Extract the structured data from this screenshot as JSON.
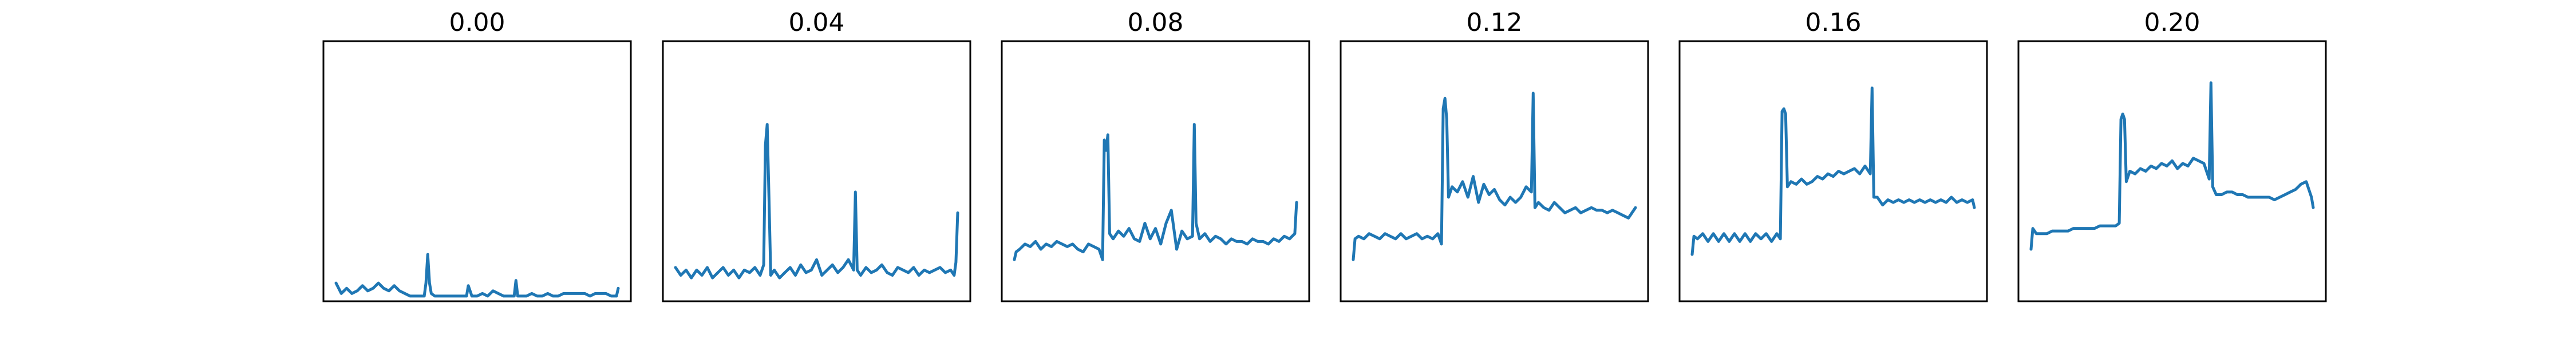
{
  "figure": {
    "background": "#ffffff",
    "line_color": "#1f77b4"
  },
  "chart_data": [
    {
      "type": "line",
      "title": "0.00",
      "ylim": [
        0,
        1
      ],
      "grid": false,
      "x": [
        0,
        3,
        6,
        9,
        12,
        15,
        18,
        21,
        24,
        27,
        30,
        33,
        36,
        39,
        42,
        45,
        48,
        50,
        51,
        52,
        53,
        54,
        56,
        59,
        62,
        65,
        68,
        71,
        74,
        75,
        77,
        80,
        83,
        86,
        89,
        92,
        95,
        98,
        101,
        102,
        103,
        105,
        108,
        111,
        114,
        117,
        120,
        123,
        126,
        129,
        132,
        135,
        138,
        141,
        144,
        147,
        150,
        153,
        156,
        159,
        160
      ],
      "series": [
        {
          "values": [
            0.07,
            0.03,
            0.05,
            0.03,
            0.04,
            0.06,
            0.04,
            0.05,
            0.07,
            0.05,
            0.04,
            0.06,
            0.04,
            0.03,
            0.02,
            0.02,
            0.02,
            0.02,
            0.07,
            0.18,
            0.07,
            0.03,
            0.02,
            0.02,
            0.02,
            0.02,
            0.02,
            0.02,
            0.02,
            0.06,
            0.02,
            0.02,
            0.03,
            0.02,
            0.04,
            0.03,
            0.02,
            0.02,
            0.02,
            0.08,
            0.02,
            0.02,
            0.02,
            0.03,
            0.02,
            0.02,
            0.03,
            0.02,
            0.02,
            0.03,
            0.03,
            0.03,
            0.03,
            0.03,
            0.02,
            0.03,
            0.03,
            0.03,
            0.02,
            0.02,
            0.05
          ]
        }
      ]
    },
    {
      "type": "line",
      "title": "0.04",
      "ylim": [
        0,
        1
      ],
      "grid": false,
      "x": [
        0,
        3,
        6,
        9,
        12,
        15,
        18,
        21,
        24,
        27,
        30,
        33,
        36,
        39,
        42,
        45,
        48,
        50,
        51,
        52,
        53,
        54,
        56,
        59,
        62,
        65,
        68,
        71,
        74,
        77,
        80,
        83,
        86,
        89,
        92,
        95,
        98,
        101,
        102,
        103,
        105,
        108,
        111,
        114,
        117,
        120,
        123,
        126,
        129,
        132,
        135,
        138,
        141,
        144,
        147,
        150,
        153,
        156,
        158,
        159,
        160
      ],
      "series": [
        {
          "values": [
            0.13,
            0.1,
            0.12,
            0.09,
            0.12,
            0.1,
            0.13,
            0.09,
            0.11,
            0.13,
            0.1,
            0.12,
            0.09,
            0.12,
            0.11,
            0.13,
            0.1,
            0.14,
            0.6,
            0.68,
            0.4,
            0.1,
            0.12,
            0.09,
            0.11,
            0.13,
            0.1,
            0.14,
            0.11,
            0.12,
            0.16,
            0.1,
            0.12,
            0.14,
            0.11,
            0.13,
            0.16,
            0.12,
            0.42,
            0.12,
            0.1,
            0.13,
            0.11,
            0.12,
            0.14,
            0.11,
            0.1,
            0.13,
            0.12,
            0.11,
            0.13,
            0.1,
            0.12,
            0.11,
            0.12,
            0.13,
            0.11,
            0.12,
            0.1,
            0.15,
            0.34
          ]
        }
      ]
    },
    {
      "type": "line",
      "title": "0.08",
      "ylim": [
        0,
        1
      ],
      "grid": false,
      "x": [
        0,
        1,
        3,
        6,
        9,
        12,
        15,
        18,
        21,
        24,
        27,
        30,
        33,
        36,
        39,
        42,
        45,
        48,
        50,
        51,
        52,
        53,
        54,
        56,
        59,
        62,
        65,
        68,
        71,
        74,
        77,
        80,
        83,
        86,
        89,
        92,
        95,
        98,
        101,
        102,
        103,
        105,
        108,
        111,
        114,
        117,
        120,
        123,
        126,
        129,
        132,
        135,
        138,
        141,
        144,
        147,
        150,
        153,
        156,
        159,
        160
      ],
      "series": [
        {
          "values": [
            0.16,
            0.19,
            0.2,
            0.22,
            0.21,
            0.23,
            0.2,
            0.22,
            0.21,
            0.23,
            0.22,
            0.21,
            0.22,
            0.2,
            0.19,
            0.22,
            0.21,
            0.2,
            0.16,
            0.62,
            0.58,
            0.64,
            0.26,
            0.24,
            0.27,
            0.25,
            0.28,
            0.24,
            0.23,
            0.3,
            0.24,
            0.28,
            0.22,
            0.3,
            0.35,
            0.2,
            0.27,
            0.24,
            0.25,
            0.68,
            0.3,
            0.24,
            0.26,
            0.23,
            0.25,
            0.24,
            0.22,
            0.24,
            0.23,
            0.23,
            0.22,
            0.24,
            0.23,
            0.23,
            0.22,
            0.24,
            0.23,
            0.25,
            0.24,
            0.26,
            0.38
          ]
        }
      ]
    },
    {
      "type": "line",
      "title": "0.12",
      "ylim": [
        0,
        1
      ],
      "grid": false,
      "x": [
        0,
        1,
        3,
        6,
        9,
        12,
        15,
        18,
        21,
        24,
        27,
        30,
        33,
        36,
        39,
        42,
        45,
        48,
        50,
        51,
        52,
        53,
        54,
        56,
        59,
        62,
        65,
        68,
        71,
        74,
        77,
        80,
        83,
        86,
        89,
        92,
        95,
        98,
        101,
        102,
        103,
        105,
        108,
        111,
        114,
        117,
        120,
        123,
        126,
        129,
        132,
        135,
        138,
        141,
        144,
        147,
        150,
        153,
        156,
        159,
        160
      ],
      "series": [
        {
          "values": [
            0.16,
            0.24,
            0.25,
            0.24,
            0.26,
            0.25,
            0.24,
            0.26,
            0.25,
            0.24,
            0.26,
            0.24,
            0.25,
            0.26,
            0.24,
            0.25,
            0.24,
            0.26,
            0.22,
            0.74,
            0.78,
            0.7,
            0.4,
            0.44,
            0.42,
            0.46,
            0.4,
            0.48,
            0.38,
            0.45,
            0.41,
            0.43,
            0.39,
            0.37,
            0.4,
            0.38,
            0.4,
            0.44,
            0.42,
            0.8,
            0.36,
            0.38,
            0.36,
            0.35,
            0.38,
            0.36,
            0.34,
            0.35,
            0.36,
            0.34,
            0.35,
            0.36,
            0.35,
            0.35,
            0.34,
            0.35,
            0.34,
            0.33,
            0.32,
            0.35,
            0.36
          ]
        }
      ]
    },
    {
      "type": "line",
      "title": "0.16",
      "ylim": [
        0,
        1
      ],
      "grid": false,
      "x": [
        0,
        1,
        3,
        6,
        9,
        12,
        15,
        18,
        21,
        24,
        27,
        30,
        33,
        36,
        39,
        42,
        45,
        48,
        50,
        51,
        52,
        53,
        54,
        56,
        59,
        62,
        65,
        68,
        71,
        74,
        77,
        80,
        83,
        86,
        89,
        92,
        95,
        98,
        101,
        102,
        103,
        105,
        108,
        111,
        114,
        117,
        120,
        123,
        126,
        129,
        132,
        135,
        138,
        141,
        144,
        147,
        150,
        153,
        156,
        159,
        160
      ],
      "series": [
        {
          "values": [
            0.18,
            0.25,
            0.24,
            0.26,
            0.23,
            0.26,
            0.23,
            0.26,
            0.23,
            0.26,
            0.23,
            0.26,
            0.23,
            0.26,
            0.24,
            0.26,
            0.23,
            0.26,
            0.24,
            0.73,
            0.74,
            0.72,
            0.44,
            0.46,
            0.45,
            0.47,
            0.45,
            0.46,
            0.48,
            0.47,
            0.49,
            0.48,
            0.5,
            0.49,
            0.5,
            0.51,
            0.49,
            0.52,
            0.49,
            0.82,
            0.4,
            0.4,
            0.37,
            0.39,
            0.38,
            0.39,
            0.38,
            0.39,
            0.38,
            0.39,
            0.38,
            0.39,
            0.38,
            0.39,
            0.38,
            0.4,
            0.38,
            0.39,
            0.38,
            0.39,
            0.36
          ]
        }
      ]
    },
    {
      "type": "line",
      "title": "0.20",
      "ylim": [
        0,
        1
      ],
      "grid": false,
      "x": [
        0,
        1,
        3,
        6,
        9,
        12,
        15,
        18,
        21,
        24,
        27,
        30,
        33,
        36,
        39,
        42,
        45,
        48,
        50,
        51,
        52,
        53,
        54,
        56,
        59,
        62,
        65,
        68,
        71,
        74,
        77,
        80,
        83,
        86,
        89,
        92,
        95,
        98,
        101,
        102,
        103,
        105,
        108,
        111,
        114,
        117,
        120,
        123,
        126,
        129,
        132,
        135,
        138,
        141,
        144,
        147,
        150,
        153,
        156,
        159,
        160
      ],
      "series": [
        {
          "values": [
            0.2,
            0.28,
            0.26,
            0.26,
            0.26,
            0.27,
            0.27,
            0.27,
            0.27,
            0.28,
            0.28,
            0.28,
            0.28,
            0.28,
            0.29,
            0.29,
            0.29,
            0.29,
            0.3,
            0.7,
            0.72,
            0.7,
            0.46,
            0.5,
            0.49,
            0.51,
            0.5,
            0.52,
            0.51,
            0.53,
            0.52,
            0.54,
            0.51,
            0.53,
            0.52,
            0.55,
            0.54,
            0.53,
            0.47,
            0.84,
            0.44,
            0.41,
            0.41,
            0.42,
            0.42,
            0.41,
            0.41,
            0.4,
            0.4,
            0.4,
            0.4,
            0.4,
            0.39,
            0.4,
            0.41,
            0.42,
            0.43,
            0.45,
            0.46,
            0.4,
            0.36
          ]
        }
      ]
    }
  ]
}
